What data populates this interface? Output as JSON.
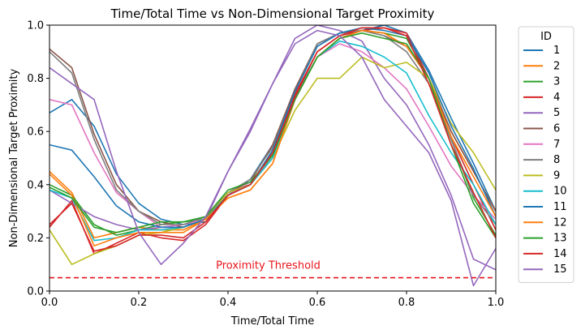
{
  "chart_data": {
    "type": "line",
    "title": "Time/Total Time vs Non-Dimensional Target Proximity",
    "xlabel": "Time/Total Time",
    "ylabel": "Non-Dimensional Target Proximity",
    "xlim": [
      0,
      1
    ],
    "ylim": [
      0,
      1
    ],
    "xticks": [
      "0.0",
      "0.2",
      "0.4",
      "0.6",
      "0.8",
      "1.0"
    ],
    "yticks": [
      "0.0",
      "0.2",
      "0.4",
      "0.6",
      "0.8",
      "1.0"
    ],
    "grid": false,
    "legend": {
      "title": "ID",
      "placement": "outside-right"
    },
    "threshold": {
      "y": 0.05,
      "label": "Proximity Threshold",
      "color": "#e8141c",
      "style": "dashed"
    },
    "x": [
      0.0,
      0.05,
      0.1,
      0.15,
      0.2,
      0.25,
      0.3,
      0.35,
      0.4,
      0.45,
      0.5,
      0.55,
      0.6,
      0.65,
      0.7,
      0.75,
      0.8,
      0.85,
      0.9,
      0.95,
      1.0
    ],
    "series": [
      {
        "name": "1",
        "color": "#1f77b4",
        "values": [
          0.67,
          0.72,
          0.62,
          0.44,
          0.33,
          0.27,
          0.25,
          0.26,
          0.36,
          0.42,
          0.55,
          0.75,
          0.92,
          0.97,
          0.98,
          1.0,
          0.97,
          0.83,
          0.65,
          0.48,
          0.3
        ]
      },
      {
        "name": "2",
        "color": "#ff7f0e",
        "values": [
          0.45,
          0.37,
          0.2,
          0.22,
          0.24,
          0.23,
          0.23,
          0.27,
          0.35,
          0.38,
          0.48,
          0.72,
          0.88,
          0.95,
          0.98,
          0.97,
          0.92,
          0.8,
          0.6,
          0.45,
          0.3
        ]
      },
      {
        "name": "3",
        "color": "#2ca02c",
        "values": [
          0.4,
          0.36,
          0.25,
          0.21,
          0.23,
          0.25,
          0.26,
          0.27,
          0.37,
          0.4,
          0.5,
          0.72,
          0.88,
          0.95,
          0.98,
          0.97,
          0.95,
          0.8,
          0.57,
          0.35,
          0.21
        ]
      },
      {
        "name": "4",
        "color": "#d62728",
        "values": [
          0.24,
          0.34,
          0.14,
          0.18,
          0.22,
          0.2,
          0.19,
          0.25,
          0.36,
          0.4,
          0.52,
          0.74,
          0.9,
          0.96,
          0.98,
          0.99,
          0.97,
          0.8,
          0.58,
          0.4,
          0.23
        ]
      },
      {
        "name": "5",
        "color": "#9467bd",
        "values": [
          0.38,
          0.33,
          0.28,
          0.25,
          0.23,
          0.24,
          0.24,
          0.27,
          0.45,
          0.6,
          0.78,
          0.95,
          1.0,
          0.98,
          0.94,
          0.8,
          0.7,
          0.55,
          0.36,
          0.12,
          0.08
        ]
      },
      {
        "name": "6",
        "color": "#8c564b",
        "values": [
          0.91,
          0.84,
          0.59,
          0.4,
          0.3,
          0.26,
          0.24,
          0.27,
          0.37,
          0.41,
          0.55,
          0.76,
          0.93,
          0.97,
          0.98,
          0.96,
          0.92,
          0.8,
          0.6,
          0.45,
          0.3
        ]
      },
      {
        "name": "7",
        "color": "#e377c2",
        "values": [
          0.72,
          0.7,
          0.52,
          0.37,
          0.3,
          0.24,
          0.25,
          0.27,
          0.36,
          0.41,
          0.5,
          0.73,
          0.88,
          0.93,
          0.9,
          0.84,
          0.76,
          0.62,
          0.47,
          0.36,
          0.27
        ]
      },
      {
        "name": "8",
        "color": "#7f7f7f",
        "values": [
          0.9,
          0.82,
          0.57,
          0.38,
          0.3,
          0.25,
          0.25,
          0.28,
          0.37,
          0.42,
          0.54,
          0.75,
          0.93,
          0.97,
          0.98,
          0.96,
          0.9,
          0.78,
          0.57,
          0.36,
          0.25
        ]
      },
      {
        "name": "9",
        "color": "#bcbd22",
        "values": [
          0.23,
          0.1,
          0.14,
          0.17,
          0.21,
          0.22,
          0.24,
          0.27,
          0.37,
          0.4,
          0.5,
          0.68,
          0.8,
          0.8,
          0.88,
          0.84,
          0.86,
          0.8,
          0.63,
          0.52,
          0.38
        ]
      },
      {
        "name": "10",
        "color": "#17becf",
        "values": [
          0.38,
          0.35,
          0.19,
          0.2,
          0.23,
          0.23,
          0.24,
          0.27,
          0.36,
          0.4,
          0.5,
          0.73,
          0.88,
          0.94,
          0.92,
          0.88,
          0.82,
          0.66,
          0.52,
          0.4,
          0.25
        ]
      },
      {
        "name": "11",
        "color": "#1f77b4",
        "values": [
          0.55,
          0.53,
          0.43,
          0.32,
          0.26,
          0.24,
          0.24,
          0.27,
          0.36,
          0.4,
          0.53,
          0.75,
          0.92,
          0.97,
          0.99,
          0.98,
          0.96,
          0.82,
          0.62,
          0.46,
          0.28
        ]
      },
      {
        "name": "12",
        "color": "#ff7f0e",
        "values": [
          0.44,
          0.36,
          0.17,
          0.2,
          0.22,
          0.22,
          0.22,
          0.27,
          0.35,
          0.38,
          0.48,
          0.72,
          0.88,
          0.95,
          0.98,
          0.97,
          0.92,
          0.8,
          0.58,
          0.43,
          0.28
        ]
      },
      {
        "name": "13",
        "color": "#2ca02c",
        "values": [
          0.39,
          0.35,
          0.24,
          0.22,
          0.24,
          0.26,
          0.26,
          0.28,
          0.38,
          0.41,
          0.51,
          0.72,
          0.88,
          0.95,
          0.97,
          0.95,
          0.93,
          0.8,
          0.55,
          0.33,
          0.2
        ]
      },
      {
        "name": "14",
        "color": "#d62728",
        "values": [
          0.25,
          0.33,
          0.15,
          0.17,
          0.21,
          0.21,
          0.2,
          0.26,
          0.36,
          0.4,
          0.52,
          0.73,
          0.9,
          0.96,
          0.99,
          0.99,
          0.96,
          0.78,
          0.55,
          0.37,
          0.2
        ]
      },
      {
        "name": "15",
        "color": "#9467bd",
        "values": [
          0.84,
          0.78,
          0.72,
          0.45,
          0.22,
          0.1,
          0.18,
          0.28,
          0.45,
          0.61,
          0.78,
          0.93,
          0.98,
          0.96,
          0.88,
          0.72,
          0.62,
          0.52,
          0.34,
          0.02,
          0.16
        ]
      }
    ]
  }
}
